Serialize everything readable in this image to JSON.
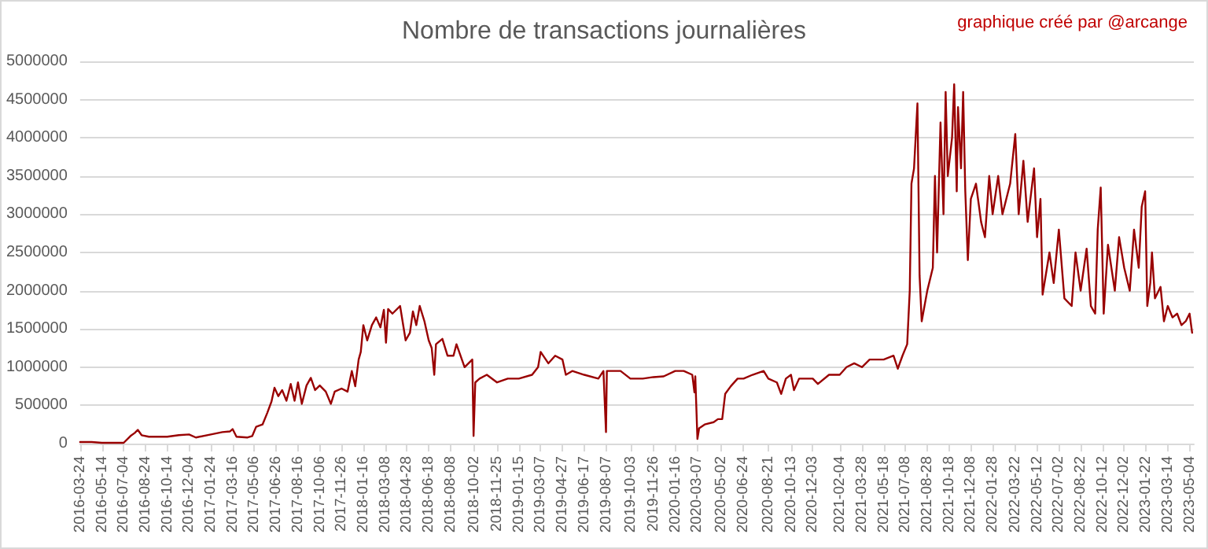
{
  "chart_data": {
    "type": "line",
    "title": "Nombre de transactions journalières",
    "annotations": [
      "graphique créé par @arcange"
    ],
    "x": [
      "2016-03-24",
      "2016-04-20",
      "2016-05-14",
      "2016-07-04",
      "2016-07-20",
      "2016-07-30",
      "2016-08-06",
      "2016-08-15",
      "2016-09-01",
      "2016-10-14",
      "2016-11-10",
      "2016-12-04",
      "2016-12-20",
      "2017-01-24",
      "2017-02-20",
      "2017-03-10",
      "2017-03-16",
      "2017-03-25",
      "2017-04-20",
      "2017-05-01",
      "2017-05-10",
      "2017-05-25",
      "2017-06-05",
      "2017-06-15",
      "2017-06-22",
      "2017-07-01",
      "2017-07-10",
      "2017-07-20",
      "2017-07-30",
      "2017-08-08",
      "2017-08-16",
      "2017-08-25",
      "2017-09-05",
      "2017-09-15",
      "2017-09-25",
      "2017-10-06",
      "2017-10-20",
      "2017-11-01",
      "2017-11-10",
      "2017-11-26",
      "2017-12-10",
      "2017-12-20",
      "2017-12-28",
      "2018-01-05",
      "2018-01-10",
      "2018-01-16",
      "2018-01-25",
      "2018-02-05",
      "2018-02-15",
      "2018-02-25",
      "2018-03-05",
      "2018-03-10",
      "2018-03-15",
      "2018-03-25",
      "2018-04-12",
      "2018-04-25",
      "2018-05-05",
      "2018-05-12",
      "2018-05-20",
      "2018-05-28",
      "2018-06-08",
      "2018-06-18",
      "2018-06-25",
      "2018-07-01",
      "2018-07-05",
      "2018-07-20",
      "2018-08-01",
      "2018-08-15",
      "2018-08-22",
      "2018-09-10",
      "2018-09-28",
      "2018-10-01",
      "2018-10-05",
      "2018-10-15",
      "2018-11-01",
      "2018-11-25",
      "2018-12-20",
      "2019-01-15",
      "2019-02-15",
      "2019-03-01",
      "2019-03-07",
      "2019-03-25",
      "2019-04-10",
      "2019-04-27",
      "2019-05-05",
      "2019-05-20",
      "2019-06-17",
      "2019-07-20",
      "2019-08-01",
      "2019-08-07",
      "2019-08-09",
      "2019-09-10",
      "2019-10-03",
      "2019-11-01",
      "2019-11-26",
      "2019-12-20",
      "2020-01-16",
      "2020-02-05",
      "2020-02-25",
      "2020-03-01",
      "2020-03-03",
      "2020-03-08",
      "2020-03-12",
      "2020-03-25",
      "2020-04-15",
      "2020-04-25",
      "2020-05-05",
      "2020-05-12",
      "2020-05-25",
      "2020-06-10",
      "2020-06-24",
      "2020-07-15",
      "2020-08-10",
      "2020-08-21",
      "2020-09-10",
      "2020-09-20",
      "2020-10-01",
      "2020-10-13",
      "2020-10-20",
      "2020-11-01",
      "2020-12-03",
      "2020-12-15",
      "2021-01-10",
      "2021-02-04",
      "2021-02-20",
      "2021-03-10",
      "2021-03-28",
      "2021-04-15",
      "2021-05-18",
      "2021-06-10",
      "2021-06-20",
      "2021-07-01",
      "2021-07-12",
      "2021-07-18",
      "2021-07-22",
      "2021-07-28",
      "2021-08-05",
      "2021-08-10",
      "2021-08-15",
      "2021-08-28",
      "2021-09-10",
      "2021-09-15",
      "2021-09-20",
      "2021-09-28",
      "2021-10-05",
      "2021-10-10",
      "2021-10-15",
      "2021-10-25",
      "2021-10-30",
      "2021-11-05",
      "2021-11-08",
      "2021-11-15",
      "2021-11-20",
      "2021-11-25",
      "2021-12-01",
      "2021-12-08",
      "2021-12-20",
      "2022-01-01",
      "2022-01-10",
      "2022-01-20",
      "2022-01-28",
      "2022-02-10",
      "2022-02-20",
      "2022-03-10",
      "2022-03-22",
      "2022-03-30",
      "2022-04-10",
      "2022-04-20",
      "2022-05-05",
      "2022-05-12",
      "2022-05-20",
      "2022-05-25",
      "2022-06-10",
      "2022-06-20",
      "2022-07-02",
      "2022-07-15",
      "2022-08-01",
      "2022-08-10",
      "2022-08-22",
      "2022-09-05",
      "2022-09-15",
      "2022-09-25",
      "2022-10-01",
      "2022-10-08",
      "2022-10-15",
      "2022-10-25",
      "2022-11-10",
      "2022-11-20",
      "2022-12-02",
      "2022-12-15",
      "2022-12-25",
      "2023-01-05",
      "2023-01-12",
      "2023-01-20",
      "2023-01-25",
      "2023-02-01",
      "2023-02-05",
      "2023-02-12",
      "2023-02-25",
      "2023-03-05",
      "2023-03-14",
      "2023-03-25",
      "2023-04-05",
      "2023-04-15",
      "2023-04-25",
      "2023-05-04",
      "2023-05-10"
    ],
    "series": [
      {
        "color": "#990000",
        "values": [
          20000,
          20000,
          10000,
          10000,
          100000,
          140000,
          180000,
          110000,
          90000,
          90000,
          110000,
          120000,
          80000,
          120000,
          150000,
          160000,
          190000,
          90000,
          80000,
          100000,
          220000,
          250000,
          400000,
          550000,
          730000,
          620000,
          700000,
          560000,
          780000,
          560000,
          800000,
          520000,
          760000,
          860000,
          700000,
          760000,
          680000,
          520000,
          680000,
          720000,
          680000,
          950000,
          750000,
          1100000,
          1200000,
          1550000,
          1350000,
          1550000,
          1650000,
          1520000,
          1750000,
          1320000,
          1760000,
          1700000,
          1800000,
          1350000,
          1450000,
          1730000,
          1550000,
          1800000,
          1600000,
          1350000,
          1250000,
          900000,
          1300000,
          1370000,
          1150000,
          1150000,
          1300000,
          1000000,
          1100000,
          100000,
          800000,
          850000,
          900000,
          800000,
          850000,
          850000,
          900000,
          1000000,
          1200000,
          1050000,
          1150000,
          1100000,
          900000,
          950000,
          900000,
          850000,
          950000,
          150000,
          950000,
          950000,
          850000,
          850000,
          870000,
          880000,
          950000,
          950000,
          900000,
          670000,
          880000,
          60000,
          200000,
          250000,
          280000,
          320000,
          320000,
          650000,
          750000,
          850000,
          850000,
          900000,
          950000,
          850000,
          800000,
          650000,
          850000,
          900000,
          700000,
          850000,
          850000,
          780000,
          900000,
          900000,
          1000000,
          1050000,
          1000000,
          1100000,
          1100000,
          1150000,
          980000,
          1150000,
          1300000,
          2000000,
          3400000,
          3600000,
          4450000,
          2200000,
          1600000,
          2000000,
          2300000,
          3500000,
          2500000,
          4200000,
          3000000,
          4600000,
          3500000,
          4000000,
          4700000,
          3300000,
          4400000,
          3600000,
          4600000,
          3300000,
          2400000,
          3200000,
          3400000,
          2900000,
          2700000,
          3500000,
          3000000,
          3500000,
          3000000,
          3400000,
          4050000,
          3000000,
          3700000,
          2900000,
          3600000,
          2700000,
          3200000,
          1950000,
          2500000,
          2100000,
          2800000,
          1900000,
          1800000,
          2500000,
          2000000,
          2550000,
          1800000,
          1700000,
          2800000,
          3350000,
          1700000,
          2600000,
          2000000,
          2700000,
          2300000,
          2000000,
          2800000,
          2300000,
          3100000,
          3300000,
          1800000,
          2100000,
          2500000,
          1900000,
          2050000,
          1600000,
          1800000,
          1650000,
          1700000,
          1550000,
          1600000,
          1700000,
          1450000
        ]
      }
    ],
    "xlim": [
      "2016-03-24",
      "2023-05-14"
    ],
    "xticks": [
      "2016-03-24",
      "2016-05-14",
      "2016-07-04",
      "2016-08-24",
      "2016-10-14",
      "2016-12-04",
      "2017-01-24",
      "2017-03-16",
      "2017-05-06",
      "2017-06-26",
      "2017-08-16",
      "2017-10-06",
      "2017-11-26",
      "2018-01-16",
      "2018-03-08",
      "2018-04-28",
      "2018-06-18",
      "2018-08-08",
      "2018-10-02",
      "2018-11-25",
      "2019-01-15",
      "2019-03-07",
      "2019-04-27",
      "2019-06-17",
      "2019-08-07",
      "2019-10-03",
      "2019-11-26",
      "2020-01-16",
      "2020-03-07",
      "2020-05-02",
      "2020-06-24",
      "2020-08-21",
      "2020-10-13",
      "2020-12-03",
      "2021-02-04",
      "2021-03-28",
      "2021-05-18",
      "2021-07-08",
      "2021-08-28",
      "2021-10-18",
      "2021-12-08",
      "2022-01-28",
      "2022-03-22",
      "2022-05-12",
      "2022-07-02",
      "2022-08-22",
      "2022-10-12",
      "2022-12-02",
      "2023-01-22",
      "2023-03-14",
      "2023-05-04"
    ],
    "ylim": [
      0,
      5000000
    ],
    "yticks": [
      0,
      500000,
      1000000,
      1500000,
      2000000,
      2500000,
      3000000,
      3500000,
      4000000,
      4500000,
      5000000
    ],
    "grid": "y",
    "marker": "none",
    "line_style": "solid"
  }
}
